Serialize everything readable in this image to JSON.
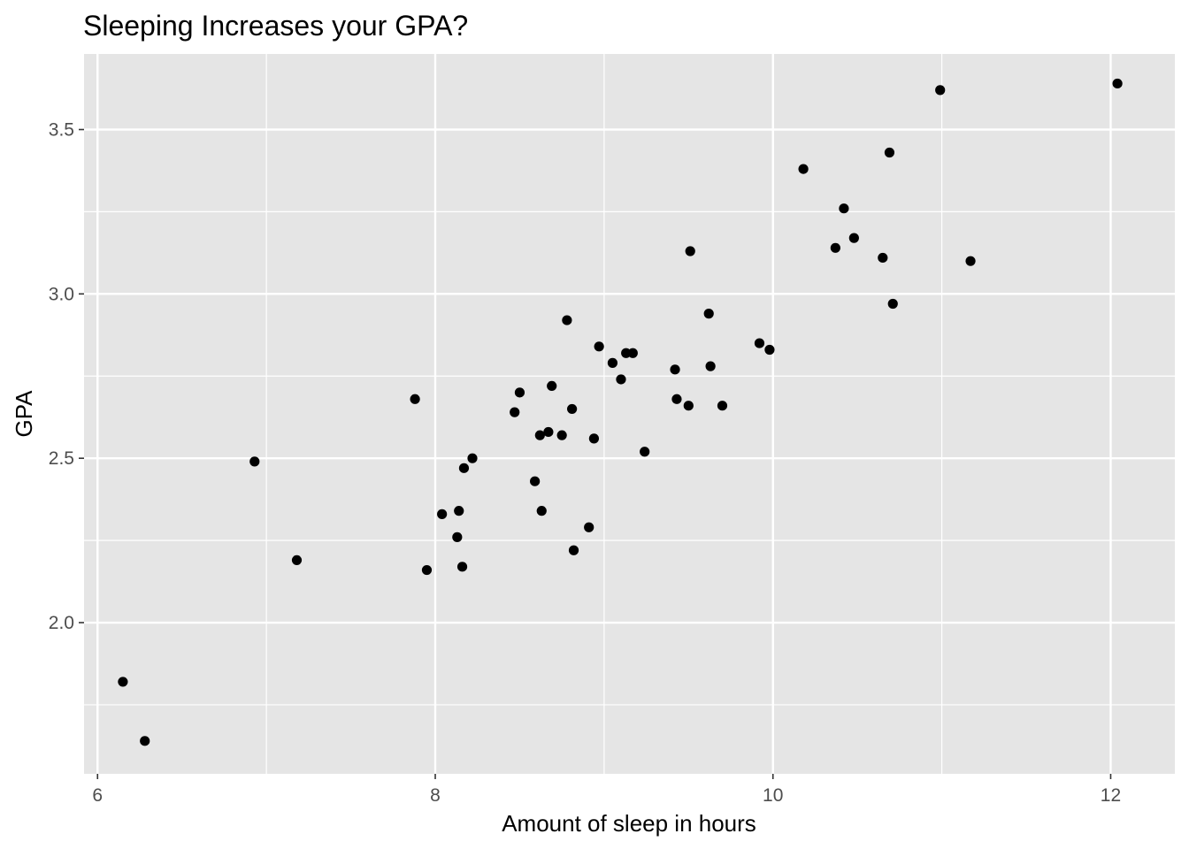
{
  "chart_data": {
    "type": "scatter",
    "title": "Sleeping Increases your GPA?",
    "xlabel": "Amount of sleep in hours",
    "ylabel": "GPA",
    "xlim": [
      5.92,
      12.38
    ],
    "ylim": [
      1.54,
      3.73
    ],
    "x_ticks": [
      6,
      8,
      10,
      12
    ],
    "x_tick_labels": [
      "6",
      "8",
      "10",
      "12"
    ],
    "y_ticks": [
      2.0,
      2.5,
      3.0,
      3.5
    ],
    "y_tick_labels": [
      "2.0",
      "2.5",
      "3.0",
      "3.5"
    ],
    "grid": true,
    "legend": "none",
    "colors": {
      "panel": "#e5e5e5",
      "grid": "#ffffff",
      "point": "#000000",
      "tick": "#333333"
    },
    "points": [
      [
        6.15,
        1.82
      ],
      [
        6.28,
        1.64
      ],
      [
        6.93,
        2.49
      ],
      [
        7.18,
        2.19
      ],
      [
        7.88,
        2.68
      ],
      [
        7.95,
        2.16
      ],
      [
        8.04,
        2.33
      ],
      [
        8.13,
        2.26
      ],
      [
        8.14,
        2.34
      ],
      [
        8.16,
        2.17
      ],
      [
        8.17,
        2.47
      ],
      [
        8.22,
        2.5
      ],
      [
        8.47,
        2.64
      ],
      [
        8.5,
        2.7
      ],
      [
        8.59,
        2.43
      ],
      [
        8.62,
        2.57
      ],
      [
        8.63,
        2.34
      ],
      [
        8.67,
        2.58
      ],
      [
        8.69,
        2.72
      ],
      [
        8.75,
        2.57
      ],
      [
        8.78,
        2.92
      ],
      [
        8.81,
        2.65
      ],
      [
        8.82,
        2.22
      ],
      [
        8.91,
        2.29
      ],
      [
        8.94,
        2.56
      ],
      [
        8.97,
        2.84
      ],
      [
        9.05,
        2.79
      ],
      [
        9.1,
        2.74
      ],
      [
        9.13,
        2.82
      ],
      [
        9.17,
        2.82
      ],
      [
        9.24,
        2.52
      ],
      [
        9.42,
        2.77
      ],
      [
        9.43,
        2.68
      ],
      [
        9.5,
        2.66
      ],
      [
        9.51,
        3.13
      ],
      [
        9.62,
        2.94
      ],
      [
        9.63,
        2.78
      ],
      [
        9.7,
        2.66
      ],
      [
        9.92,
        2.85
      ],
      [
        9.98,
        2.83
      ],
      [
        10.18,
        3.38
      ],
      [
        10.37,
        3.14
      ],
      [
        10.42,
        3.26
      ],
      [
        10.48,
        3.17
      ],
      [
        10.65,
        3.11
      ],
      [
        10.69,
        3.43
      ],
      [
        10.71,
        2.97
      ],
      [
        10.99,
        3.62
      ],
      [
        11.17,
        3.1
      ],
      [
        12.04,
        3.64
      ]
    ]
  }
}
